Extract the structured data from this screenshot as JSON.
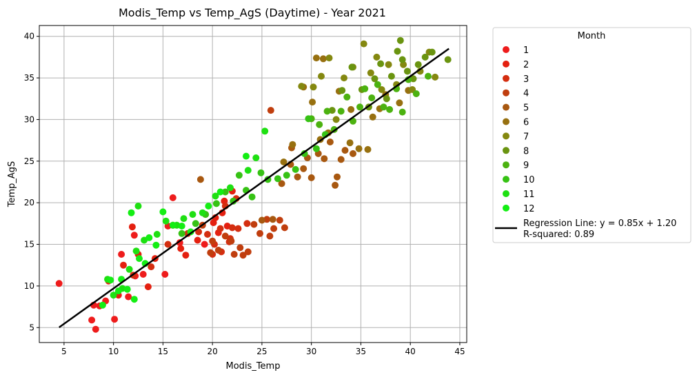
{
  "chart_data": {
    "type": "scatter",
    "title": "Modis_Temp vs Temp_AgS (Daytime) - Year 2021",
    "xlabel": "Modis_Temp",
    "ylabel": "Temp_AgS",
    "xlim": [
      2.5,
      45.7
    ],
    "ylim": [
      3.2,
      41.3
    ],
    "xticks": [
      5,
      10,
      15,
      20,
      25,
      30,
      35,
      40,
      45
    ],
    "yticks": [
      5,
      10,
      15,
      20,
      25,
      30,
      35,
      40
    ],
    "grid": true,
    "legend": {
      "title": "Month",
      "placement": "outside-right",
      "entries": [
        "1",
        "2",
        "3",
        "4",
        "5",
        "6",
        "7",
        "8",
        "9",
        "10",
        "11",
        "12"
      ],
      "line_label": "Regression Line: y = 0.85x + 1.20",
      "line_sublabel": "R-squared: 0.89"
    },
    "regression": {
      "slope": 0.85,
      "intercept": 1.2,
      "x_range": [
        4.5,
        43.9
      ],
      "r_squared": 0.89,
      "color": "#000000"
    },
    "series": [
      {
        "name": "1",
        "color": "#ee1c1c",
        "points": [
          [
            4.5,
            10.3
          ],
          [
            7.8,
            5.9
          ],
          [
            8.2,
            4.8
          ],
          [
            8.6,
            7.6
          ],
          [
            9.2,
            8.2
          ],
          [
            10.1,
            6.0
          ],
          [
            10.5,
            8.9
          ],
          [
            11.5,
            8.7
          ],
          [
            12.2,
            11.2
          ],
          [
            13.0,
            11.4
          ],
          [
            15.2,
            11.4
          ],
          [
            15.5,
            17.2
          ],
          [
            16.0,
            20.6
          ],
          [
            16.7,
            15.2
          ],
          [
            19.2,
            15.0
          ],
          [
            12.1,
            16.1
          ],
          [
            10.8,
            13.8
          ],
          [
            8.0,
            7.7
          ]
        ]
      },
      {
        "name": "2",
        "color": "#e42010",
        "points": [
          [
            9.5,
            10.6
          ],
          [
            10.4,
            9.0
          ],
          [
            11.0,
            12.5
          ],
          [
            11.9,
            17.1
          ],
          [
            12.5,
            13.8
          ],
          [
            13.5,
            9.9
          ],
          [
            14.2,
            13.3
          ],
          [
            16.0,
            17.3
          ],
          [
            16.8,
            14.5
          ],
          [
            17.3,
            13.7
          ],
          [
            18.5,
            15.5
          ],
          [
            20.1,
            17.6
          ],
          [
            20.6,
            16.4
          ],
          [
            21.0,
            18.8
          ],
          [
            21.5,
            17.2
          ],
          [
            22.0,
            21.4
          ],
          [
            21.2,
            20.2
          ],
          [
            20.3,
            18.2
          ]
        ]
      },
      {
        "name": "3",
        "color": "#d42e10",
        "points": [
          [
            12.0,
            11.3
          ],
          [
            13.8,
            12.3
          ],
          [
            15.5,
            15.0
          ],
          [
            17.5,
            16.3
          ],
          [
            18.6,
            16.5
          ],
          [
            19.5,
            16.2
          ],
          [
            20.2,
            15.0
          ],
          [
            20.8,
            16.9
          ],
          [
            21.3,
            19.6
          ],
          [
            22.0,
            17.0
          ],
          [
            22.6,
            16.9
          ],
          [
            23.5,
            17.5
          ],
          [
            21.7,
            15.3
          ],
          [
            19.3,
            18.6
          ],
          [
            20.9,
            14.1
          ],
          [
            22.4,
            20.5
          ],
          [
            20.0,
            13.8
          ],
          [
            21.8,
            15.7
          ]
        ]
      },
      {
        "name": "4",
        "color": "#c03e0e",
        "points": [
          [
            19.0,
            17.3
          ],
          [
            20.0,
            15.4
          ],
          [
            20.6,
            14.3
          ],
          [
            21.3,
            16.0
          ],
          [
            21.9,
            15.4
          ],
          [
            22.8,
            14.6
          ],
          [
            23.6,
            14.1
          ],
          [
            24.2,
            17.4
          ],
          [
            24.8,
            16.3
          ],
          [
            25.5,
            18.0
          ],
          [
            26.2,
            16.9
          ],
          [
            26.8,
            17.9
          ],
          [
            27.3,
            17.0
          ],
          [
            25.8,
            16.0
          ],
          [
            23.1,
            13.7
          ],
          [
            19.8,
            14.0
          ],
          [
            22.2,
            13.8
          ],
          [
            25.9,
            31.1
          ]
        ]
      },
      {
        "name": "5",
        "color": "#a85810",
        "points": [
          [
            18.8,
            22.8
          ],
          [
            25.0,
            17.9
          ],
          [
            26.1,
            18.0
          ],
          [
            27.0,
            22.3
          ],
          [
            27.9,
            24.6
          ],
          [
            28.6,
            23.1
          ],
          [
            29.2,
            24.1
          ],
          [
            30.0,
            23.0
          ],
          [
            30.7,
            25.9
          ],
          [
            31.3,
            25.3
          ],
          [
            31.9,
            27.3
          ],
          [
            32.6,
            23.1
          ],
          [
            33.4,
            26.3
          ],
          [
            34.2,
            25.9
          ],
          [
            32.4,
            22.1
          ],
          [
            28.0,
            26.6
          ],
          [
            29.6,
            25.4
          ],
          [
            33.0,
            25.2
          ]
        ]
      },
      {
        "name": "6",
        "color": "#977010",
        "points": [
          [
            27.2,
            24.9
          ],
          [
            28.1,
            27.0
          ],
          [
            29.2,
            33.9
          ],
          [
            30.1,
            32.1
          ],
          [
            30.9,
            27.6
          ],
          [
            31.7,
            28.4
          ],
          [
            32.8,
            33.4
          ],
          [
            33.9,
            27.2
          ],
          [
            34.8,
            26.5
          ],
          [
            35.7,
            26.4
          ],
          [
            36.9,
            31.3
          ],
          [
            37.5,
            33.0
          ],
          [
            38.9,
            32.0
          ],
          [
            39.8,
            33.5
          ],
          [
            36.2,
            30.3
          ],
          [
            34.0,
            31.2
          ],
          [
            30.5,
            37.4
          ],
          [
            31.2,
            37.3
          ]
        ]
      },
      {
        "name": "7",
        "color": "#848810",
        "points": [
          [
            29.0,
            34.0
          ],
          [
            30.2,
            33.9
          ],
          [
            31.0,
            35.2
          ],
          [
            31.8,
            37.4
          ],
          [
            32.5,
            30.0
          ],
          [
            33.3,
            35.0
          ],
          [
            34.2,
            36.3
          ],
          [
            35.3,
            39.1
          ],
          [
            36.0,
            35.6
          ],
          [
            36.6,
            37.5
          ],
          [
            37.1,
            33.6
          ],
          [
            37.8,
            36.6
          ],
          [
            38.6,
            34.2
          ],
          [
            39.3,
            36.6
          ],
          [
            40.2,
            33.6
          ],
          [
            41.0,
            35.8
          ],
          [
            41.9,
            38.1
          ],
          [
            42.5,
            35.1
          ]
        ]
      },
      {
        "name": "8",
        "color": "#6a9410",
        "points": [
          [
            32.1,
            31.1
          ],
          [
            33.1,
            33.5
          ],
          [
            34.1,
            36.3
          ],
          [
            35.1,
            33.6
          ],
          [
            35.8,
            31.5
          ],
          [
            36.4,
            34.9
          ],
          [
            37.0,
            36.7
          ],
          [
            37.6,
            32.5
          ],
          [
            38.1,
            35.2
          ],
          [
            38.7,
            38.2
          ],
          [
            39.2,
            37.2
          ],
          [
            39.7,
            35.8
          ],
          [
            40.3,
            34.9
          ],
          [
            40.8,
            36.6
          ],
          [
            41.5,
            37.5
          ],
          [
            42.2,
            38.1
          ],
          [
            43.8,
            37.2
          ],
          [
            39.0,
            39.5
          ]
        ]
      },
      {
        "name": "9",
        "color": "#4cb210",
        "points": [
          [
            30.0,
            30.1
          ],
          [
            30.8,
            29.4
          ],
          [
            31.6,
            31.0
          ],
          [
            32.3,
            28.8
          ],
          [
            33.0,
            31.0
          ],
          [
            33.6,
            32.7
          ],
          [
            34.2,
            29.8
          ],
          [
            34.9,
            31.5
          ],
          [
            35.4,
            33.7
          ],
          [
            36.1,
            32.6
          ],
          [
            36.7,
            34.2
          ],
          [
            37.3,
            31.5
          ],
          [
            37.9,
            31.2
          ],
          [
            38.6,
            33.7
          ],
          [
            39.2,
            30.9
          ],
          [
            39.8,
            34.8
          ],
          [
            40.6,
            33.1
          ],
          [
            41.8,
            35.2
          ]
        ]
      },
      {
        "name": "10",
        "color": "#36c214",
        "points": [
          [
            16.9,
            16.3
          ],
          [
            18.3,
            17.5
          ],
          [
            19.3,
            18.6
          ],
          [
            20.4,
            19.9
          ],
          [
            21.3,
            21.3
          ],
          [
            22.1,
            20.2
          ],
          [
            22.7,
            23.3
          ],
          [
            23.4,
            21.5
          ],
          [
            24.0,
            20.7
          ],
          [
            24.9,
            23.6
          ],
          [
            25.6,
            22.8
          ],
          [
            26.6,
            22.9
          ],
          [
            27.5,
            23.3
          ],
          [
            28.4,
            24.0
          ],
          [
            29.3,
            25.9
          ],
          [
            30.5,
            26.5
          ],
          [
            31.4,
            28.2
          ],
          [
            29.7,
            30.1
          ]
        ]
      },
      {
        "name": "11",
        "color": "#1ee012",
        "points": [
          [
            9.4,
            10.8
          ],
          [
            10.0,
            8.9
          ],
          [
            10.9,
            9.7
          ],
          [
            11.6,
            12.0
          ],
          [
            12.3,
            14.2
          ],
          [
            12.5,
            19.6
          ],
          [
            13.1,
            15.5
          ],
          [
            14.4,
            16.2
          ],
          [
            15.3,
            17.8
          ],
          [
            16.4,
            17.3
          ],
          [
            17.1,
            18.1
          ],
          [
            18.0,
            18.6
          ],
          [
            19.0,
            18.8
          ],
          [
            20.3,
            20.8
          ],
          [
            21.8,
            21.8
          ],
          [
            23.6,
            23.9
          ],
          [
            24.4,
            25.4
          ],
          [
            25.3,
            28.6
          ]
        ]
      },
      {
        "name": "12",
        "color": "#14ee14",
        "points": [
          [
            8.9,
            7.7
          ],
          [
            9.7,
            10.7
          ],
          [
            10.5,
            9.4
          ],
          [
            11.4,
            9.6
          ],
          [
            11.8,
            18.8
          ],
          [
            12.1,
            8.4
          ],
          [
            12.6,
            13.3
          ],
          [
            13.2,
            12.7
          ],
          [
            13.6,
            15.8
          ],
          [
            14.3,
            14.9
          ],
          [
            15.0,
            18.9
          ],
          [
            16.0,
            17.3
          ],
          [
            16.9,
            17.2
          ],
          [
            17.8,
            16.5
          ],
          [
            19.6,
            19.6
          ],
          [
            20.8,
            21.3
          ],
          [
            23.4,
            25.6
          ],
          [
            10.8,
            10.8
          ]
        ]
      }
    ]
  }
}
